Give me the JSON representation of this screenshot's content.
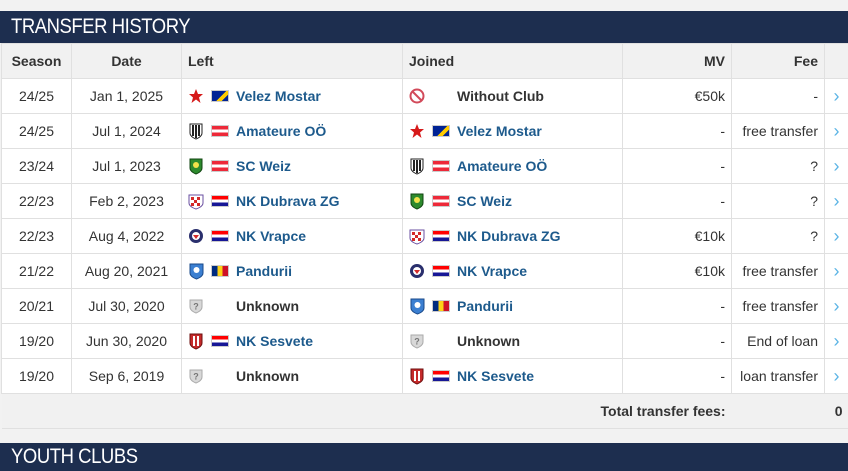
{
  "transfer_header": "TRANSFER HISTORY",
  "youth_header": "YOUTH CLUBS",
  "columns": {
    "season": "Season",
    "date": "Date",
    "left": "Left",
    "joined": "Joined",
    "mv": "MV",
    "fee": "Fee"
  },
  "rows": [
    {
      "season": "24/25",
      "date": "Jan 1, 2025",
      "left": {
        "name": "Velez Mostar",
        "crest": "red-star-crest-icon",
        "flag": "bosnia"
      },
      "joined": {
        "name": "Without Club",
        "crest": "no-club-crest-icon",
        "flag": ""
      },
      "mv": "€50k",
      "fee": "-"
    },
    {
      "season": "24/25",
      "date": "Jul 1, 2024",
      "left": {
        "name": "Amateure OÖ",
        "crest": "striped-crest-icon",
        "flag": "austria"
      },
      "joined": {
        "name": "Velez Mostar",
        "crest": "red-star-crest-icon",
        "flag": "bosnia"
      },
      "mv": "-",
      "fee": "free transfer"
    },
    {
      "season": "23/24",
      "date": "Jul 1, 2023",
      "left": {
        "name": "SC Weiz",
        "crest": "green-shield-crest-icon",
        "flag": "austria"
      },
      "joined": {
        "name": "Amateure OÖ",
        "crest": "striped-crest-icon",
        "flag": "austria"
      },
      "mv": "-",
      "fee": "?"
    },
    {
      "season": "22/23",
      "date": "Feb 2, 2023",
      "left": {
        "name": "NK Dubrava ZG",
        "crest": "checkered-crest-icon",
        "flag": "croatia"
      },
      "joined": {
        "name": "SC Weiz",
        "crest": "green-shield-crest-icon",
        "flag": "austria"
      },
      "mv": "-",
      "fee": "?"
    },
    {
      "season": "22/23",
      "date": "Aug 4, 2022",
      "left": {
        "name": "NK Vrapce",
        "crest": "round-blue-crest-icon",
        "flag": "croatia"
      },
      "joined": {
        "name": "NK Dubrava ZG",
        "crest": "checkered-crest-icon",
        "flag": "croatia"
      },
      "mv": "€10k",
      "fee": "?"
    },
    {
      "season": "21/22",
      "date": "Aug 20, 2021",
      "left": {
        "name": "Pandurii",
        "crest": "blue-shield-crest-icon",
        "flag": "romania"
      },
      "joined": {
        "name": "NK Vrapce",
        "crest": "round-blue-crest-icon",
        "flag": "croatia"
      },
      "mv": "€10k",
      "fee": "free transfer"
    },
    {
      "season": "20/21",
      "date": "Jul 30, 2020",
      "left": {
        "name": "Unknown",
        "crest": "unknown-crest-icon",
        "flag": ""
      },
      "joined": {
        "name": "Pandurii",
        "crest": "blue-shield-crest-icon",
        "flag": "romania"
      },
      "mv": "-",
      "fee": "free transfer"
    },
    {
      "season": "19/20",
      "date": "Jun 30, 2020",
      "left": {
        "name": "NK Sesvete",
        "crest": "red-white-crest-icon",
        "flag": "croatia"
      },
      "joined": {
        "name": "Unknown",
        "crest": "unknown-crest-icon",
        "flag": ""
      },
      "mv": "-",
      "fee": "End of loan"
    },
    {
      "season": "19/20",
      "date": "Sep 6, 2019",
      "left": {
        "name": "Unknown",
        "crest": "unknown-crest-icon",
        "flag": ""
      },
      "joined": {
        "name": "NK Sesvete",
        "crest": "red-white-crest-icon",
        "flag": "croatia"
      },
      "mv": "-",
      "fee": "loan transfer"
    }
  ],
  "total_label": "Total transfer fees:",
  "total_value": "0",
  "arrow_glyph": "›",
  "colors": {
    "header_bg": "#1d2e4f",
    "link": "#1d5a8c",
    "arrow": "#5bb4e5"
  }
}
